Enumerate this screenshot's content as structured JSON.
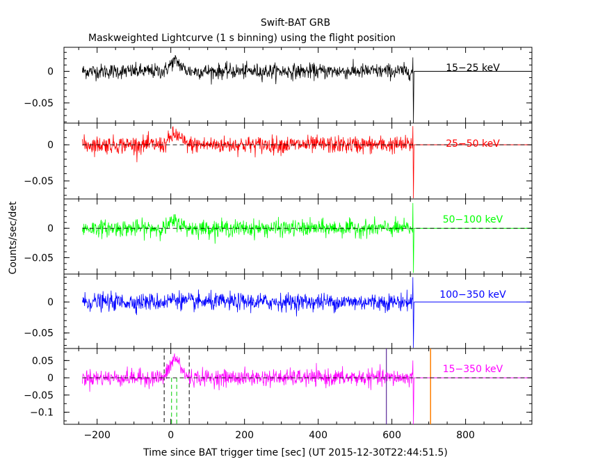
{
  "title": "Swift-BAT GRB",
  "subtitle": "Maskweighted Lightcurve (1 s binning) using the flight position",
  "chart_data": {
    "type": "line",
    "title": "Swift-BAT GRB",
    "subtitle": "Maskweighted Lightcurve (1 s binning) using the flight position",
    "xlabel": "Time since BAT trigger time [sec] (UT 2015-12-30T22:44:51.5)",
    "ylabel": "Counts/sec/det",
    "xlim": [
      -290,
      980
    ],
    "x_ticks": [
      -200,
      0,
      200,
      400,
      600,
      800
    ],
    "x_tick_labels": [
      "−200",
      "0",
      "200",
      "400",
      "600",
      "800"
    ],
    "data_x_range": [
      -240,
      660
    ],
    "zero_line_range": [
      660,
      975
    ],
    "panels": [
      {
        "name": "15−25 keV",
        "color": "#000000",
        "ylim": [
          -0.082,
          0.038
        ],
        "yticks": [
          0,
          -0.05
        ],
        "ytick_labels": [
          "0",
          "−0.05"
        ],
        "noise_sigma": 0.006,
        "burst_peak": 0.016,
        "end_spike": [
          0.022,
          -0.082
        ],
        "dashed_zero": false
      },
      {
        "name": "25−50 keV",
        "color": "#ff0000",
        "ylim": [
          -0.075,
          0.03
        ],
        "yticks": [
          0,
          -0.05
        ],
        "ytick_labels": [
          "0",
          "−0.05"
        ],
        "noise_sigma": 0.006,
        "burst_peak": 0.014,
        "end_spike": [
          0.026,
          -0.074
        ],
        "dashed_zero": true
      },
      {
        "name": "50−100 keV",
        "color": "#00ff00",
        "ylim": [
          -0.078,
          0.05
        ],
        "yticks": [
          0,
          -0.05
        ],
        "ytick_labels": [
          "0",
          "−0.05"
        ],
        "noise_sigma": 0.007,
        "burst_peak": 0.012,
        "end_spike": [
          0.043,
          -0.076
        ],
        "dashed_zero": true
      },
      {
        "name": "100−350 keV",
        "color": "#0000ff",
        "ylim": [
          -0.075,
          0.045
        ],
        "yticks": [
          0,
          -0.05
        ],
        "ytick_labels": [
          "0",
          "−0.05"
        ],
        "noise_sigma": 0.007,
        "burst_peak": 0.005,
        "end_spike": [
          0.04,
          -0.074
        ],
        "dashed_zero": false
      },
      {
        "name": "15−350 keV",
        "color": "#ff00ff",
        "ylim": [
          -0.135,
          0.085
        ],
        "yticks": [
          0.05,
          0,
          -0.05,
          -0.1
        ],
        "ytick_labels": [
          "0.05",
          "0",
          "−0.05",
          "−0.1"
        ],
        "noise_sigma": 0.012,
        "burst_peak": 0.055,
        "end_spike": [
          0.05,
          -0.135
        ],
        "dashed_zero": true
      }
    ],
    "bottom_panel_markers": {
      "black_dashed_x": [
        -18,
        50
      ],
      "green_dashed_x": [
        2,
        16
      ],
      "purple_line_x": 585,
      "orange_line_x": 705
    }
  }
}
